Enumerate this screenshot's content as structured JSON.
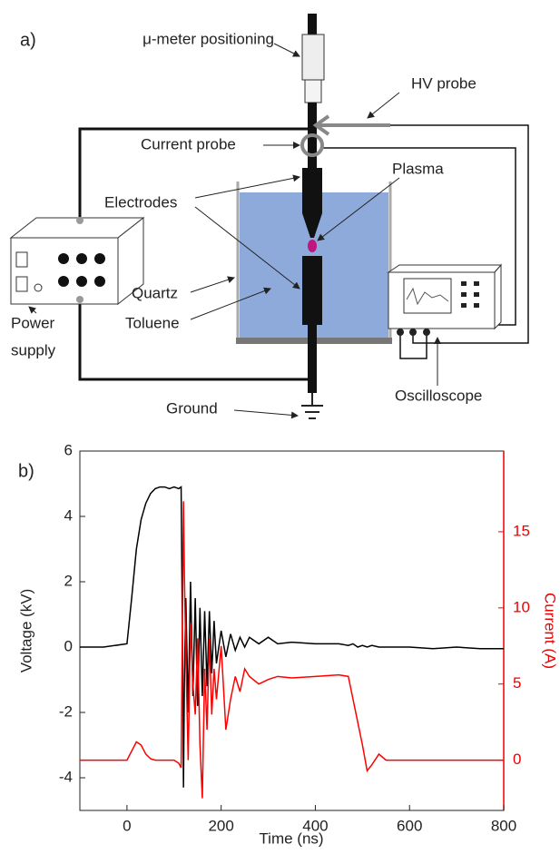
{
  "diagram": {
    "panel_label": "a)",
    "labels": {
      "micrometer": "μ-meter positioning",
      "hv_probe": "HV probe",
      "current_probe": "Current probe",
      "plasma": "Plasma",
      "electrodes": "Electrodes",
      "quartz": "Quartz",
      "toluene": "Toluene",
      "power": "Power",
      "supply": "supply",
      "oscilloscope": "Oscilloscope",
      "ground": "Ground"
    }
  },
  "chart_data": {
    "type": "line",
    "panel_label": "b)",
    "x_label": "Time (ns)",
    "y_label": "Voltage (kV)",
    "y2_label": "Current (A)",
    "x": [
      -100,
      -50,
      0,
      10,
      20,
      30,
      40,
      50,
      60,
      70,
      80,
      90,
      100,
      110,
      115,
      118,
      120,
      122,
      125,
      130,
      135,
      140,
      145,
      150,
      155,
      160,
      165,
      170,
      175,
      180,
      185,
      190,
      200,
      210,
      220,
      230,
      240,
      250,
      260,
      280,
      300,
      320,
      350,
      400,
      450,
      470,
      480,
      490,
      500,
      510,
      520,
      535,
      550,
      600,
      650,
      700,
      750,
      800
    ],
    "series": [
      {
        "color": "#000000",
        "axis": "y",
        "values": [
          0,
          0,
          0.1,
          1.5,
          3.0,
          3.9,
          4.4,
          4.7,
          4.85,
          4.9,
          4.9,
          4.85,
          4.9,
          4.85,
          4.9,
          0,
          -4.3,
          -1,
          1.5,
          -2,
          2.0,
          -1.5,
          1.5,
          -1.8,
          1.2,
          -1.5,
          1.1,
          -1.2,
          1.1,
          -0.8,
          0.8,
          -0.5,
          0.5,
          -0.3,
          0.4,
          -0.1,
          0.3,
          0,
          0.3,
          0.1,
          0.3,
          0.1,
          0.15,
          0.1,
          0.1,
          0.05,
          0.1,
          0,
          0.05,
          0,
          0.05,
          0,
          0,
          0,
          -0.05,
          0,
          -0.05,
          -0.05
        ]
      },
      {
        "color": "#ff0000",
        "axis": "y2",
        "values": [
          0,
          0,
          0,
          0.6,
          1.2,
          1.0,
          0.4,
          0.1,
          0,
          0,
          0,
          0,
          0,
          -0.2,
          -0.5,
          10,
          17,
          12,
          7,
          0,
          9,
          5,
          3,
          8,
          1,
          -2.5,
          6,
          2,
          8,
          3,
          6,
          4,
          7.5,
          2,
          4,
          5.5,
          4.5,
          6,
          5.5,
          5,
          5.3,
          5.5,
          5.4,
          5.5,
          5.6,
          5.5,
          4,
          2.5,
          1,
          -0.7,
          -0.3,
          0.4,
          0,
          0,
          0,
          0,
          0,
          0
        ]
      }
    ],
    "xlim": [
      -100,
      800
    ],
    "xticks": [
      0,
      200,
      400,
      600,
      800
    ],
    "ylim": [
      -5,
      6
    ],
    "yticks": [
      -4,
      -2,
      0,
      2,
      4,
      6
    ],
    "y2lim": [
      -3.3,
      20.3
    ],
    "y2ticks": [
      0,
      5,
      10,
      15
    ]
  }
}
